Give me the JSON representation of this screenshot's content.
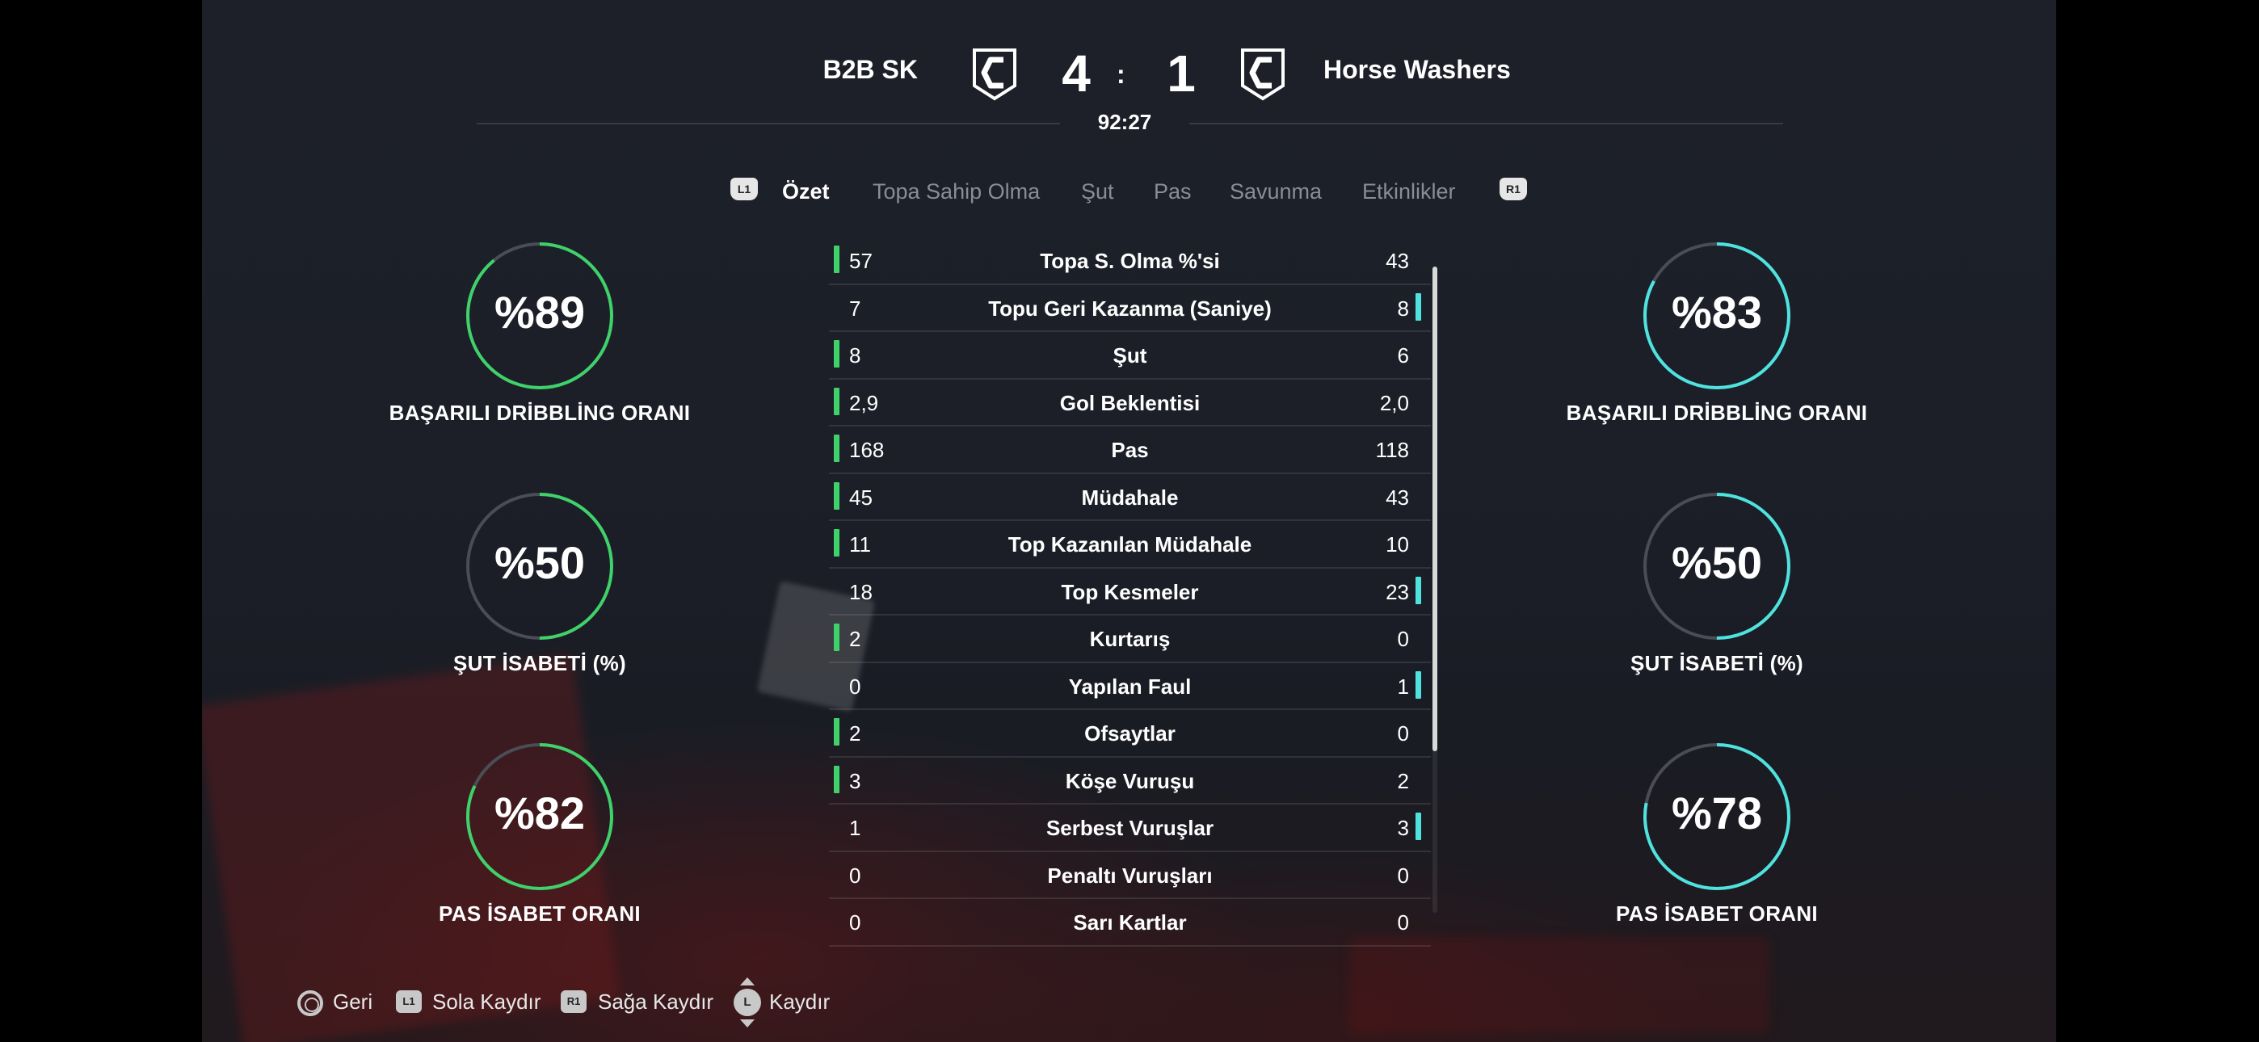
{
  "match": {
    "home_team": "B2B SK",
    "away_team": "Horse Washers",
    "home_score": "4",
    "score_separator": ":",
    "away_score": "1",
    "time": "92:27"
  },
  "tabs": {
    "left_button": "L1",
    "right_button": "R1",
    "items": [
      {
        "label": "Özet",
        "active": true
      },
      {
        "label": "Topa Sahip Olma",
        "active": false
      },
      {
        "label": "Şut",
        "active": false
      },
      {
        "label": "Pas",
        "active": false
      },
      {
        "label": "Savunma",
        "active": false
      },
      {
        "label": "Etkinlikler",
        "active": false
      }
    ]
  },
  "colors": {
    "home_accent": "#3fd16a",
    "away_accent": "#4fe3e0",
    "ring_track": "#4a4d55"
  },
  "home_rings": [
    {
      "value": "%89",
      "label": "BAŞARILI DRİBBLİNG ORANI",
      "fraction": 0.89
    },
    {
      "value": "%50",
      "label": "ŞUT İSABETİ (%)",
      "fraction": 0.5
    },
    {
      "value": "%82",
      "label": "PAS İSABET ORANI",
      "fraction": 0.82
    }
  ],
  "away_rings": [
    {
      "value": "%83",
      "label": "BAŞARILI DRİBBLİNG ORANI",
      "fraction": 0.83
    },
    {
      "value": "%50",
      "label": "ŞUT İSABETİ (%)",
      "fraction": 0.5
    },
    {
      "value": "%78",
      "label": "PAS İSABET ORANI",
      "fraction": 0.78
    }
  ],
  "stats": [
    {
      "home": "57",
      "name": "Topa S. Olma %'si",
      "away": "43",
      "lead": "home"
    },
    {
      "home": "7",
      "name": "Topu Geri Kazanma (Saniye)",
      "away": "8",
      "lead": "away"
    },
    {
      "home": "8",
      "name": "Şut",
      "away": "6",
      "lead": "home"
    },
    {
      "home": "2,9",
      "name": "Gol Beklentisi",
      "away": "2,0",
      "lead": "home"
    },
    {
      "home": "168",
      "name": "Pas",
      "away": "118",
      "lead": "home"
    },
    {
      "home": "45",
      "name": "Müdahale",
      "away": "43",
      "lead": "home"
    },
    {
      "home": "11",
      "name": "Top Kazanılan Müdahale",
      "away": "10",
      "lead": "home"
    },
    {
      "home": "18",
      "name": "Top Kesmeler",
      "away": "23",
      "lead": "away"
    },
    {
      "home": "2",
      "name": "Kurtarış",
      "away": "0",
      "lead": "home"
    },
    {
      "home": "0",
      "name": "Yapılan Faul",
      "away": "1",
      "lead": "away"
    },
    {
      "home": "2",
      "name": "Ofsaytlar",
      "away": "0",
      "lead": "home"
    },
    {
      "home": "3",
      "name": "Köşe Vuruşu",
      "away": "2",
      "lead": "home"
    },
    {
      "home": "1",
      "name": "Serbest Vuruşlar",
      "away": "3",
      "lead": "away"
    },
    {
      "home": "0",
      "name": "Penaltı Vuruşları",
      "away": "0",
      "lead": "none"
    },
    {
      "home": "0",
      "name": "Sarı Kartlar",
      "away": "0",
      "lead": "none"
    }
  ],
  "footer": {
    "back_label": "Geri",
    "l1_chip": "L1",
    "scroll_left_label": "Sola Kaydır",
    "r1_chip": "R1",
    "scroll_right_label": "Sağa Kaydır",
    "stick_chip": "L",
    "scroll_label": "Kaydır"
  },
  "icons": {
    "crest": "team-crest-icon",
    "back": "circle-button-icon",
    "stick": "left-stick-icon"
  }
}
